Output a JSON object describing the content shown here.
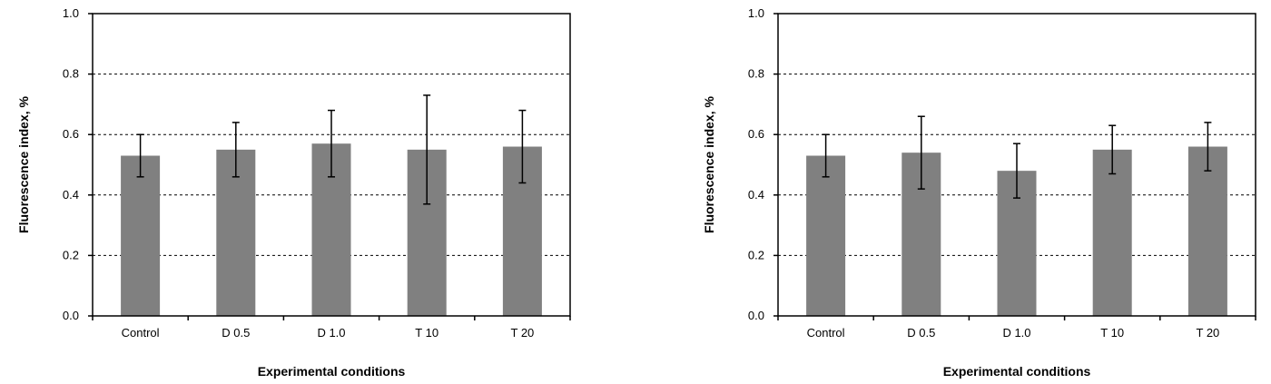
{
  "chart_data": [
    {
      "type": "bar",
      "categories": [
        "Control",
        "D 0.5",
        "D 1.0",
        "T 10",
        "T 20"
      ],
      "values": [
        0.53,
        0.55,
        0.57,
        0.55,
        0.56
      ],
      "error_low": [
        0.46,
        0.46,
        0.46,
        0.37,
        0.44
      ],
      "error_high": [
        0.6,
        0.64,
        0.68,
        0.73,
        0.68
      ],
      "title": "",
      "xlabel": "Experimental conditions",
      "ylabel": "Fluorescence index, %",
      "ylim": [
        0.0,
        1.0
      ],
      "yticks": [
        "0.0",
        "0.2",
        "0.4",
        "0.6",
        "0.8",
        "1.0"
      ],
      "grid": "horizontal dashed",
      "bar_color": "#808080"
    },
    {
      "type": "bar",
      "categories": [
        "Control",
        "D 0.5",
        "D 1.0",
        "T 10",
        "T 20"
      ],
      "values": [
        0.53,
        0.54,
        0.48,
        0.55,
        0.56
      ],
      "error_low": [
        0.46,
        0.42,
        0.39,
        0.47,
        0.48
      ],
      "error_high": [
        0.6,
        0.66,
        0.57,
        0.63,
        0.64
      ],
      "title": "",
      "xlabel": "Experimental conditions",
      "ylabel": "Fluorescence index, %",
      "ylim": [
        0.0,
        1.0
      ],
      "yticks": [
        "0.0",
        "0.2",
        "0.4",
        "0.6",
        "0.8",
        "1.0"
      ],
      "grid": "horizontal dashed",
      "bar_color": "#808080"
    }
  ]
}
